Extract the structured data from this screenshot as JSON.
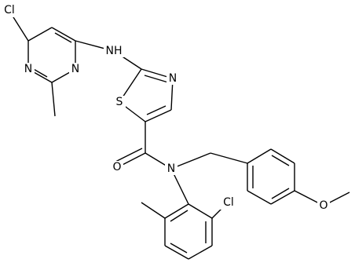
{
  "atoms": [
    {
      "label": "Cl"
    },
    {
      "label": "N"
    },
    {
      "label": "N"
    },
    {
      "label": "NH"
    },
    {
      "label": "S"
    },
    {
      "label": "N"
    },
    {
      "label": "O"
    },
    {
      "label": "N"
    },
    {
      "label": "Cl"
    },
    {
      "label": "O"
    }
  ]
}
